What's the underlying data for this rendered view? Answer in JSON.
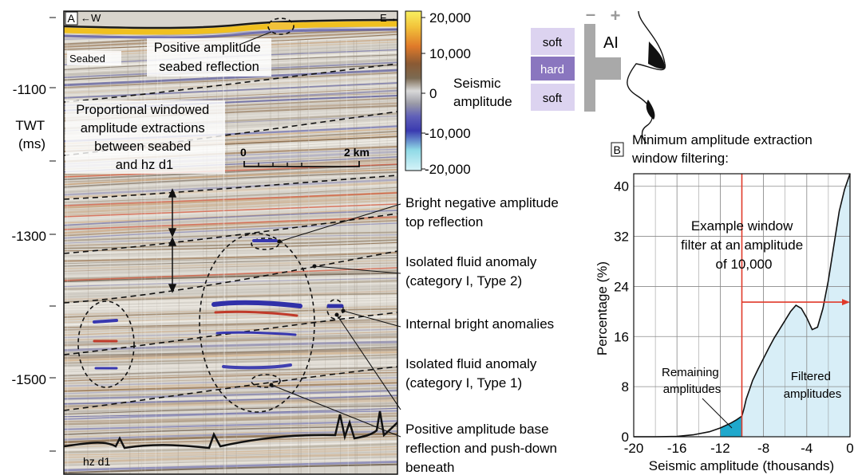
{
  "panel_a": {
    "panel_label": "A",
    "west_label": "W",
    "east_label": "E",
    "y_axis": {
      "title_line1": "TWT",
      "title_line2": "(ms)",
      "ticks": [
        "-1100",
        "-1300",
        "-1500"
      ]
    },
    "seabed_label": "Seabed",
    "horizon_label": "hz d1",
    "scale_bar": {
      "start": "0",
      "end": "2 km"
    },
    "annotations": {
      "seabed_reflection": [
        "Positive amplitude",
        "seabed reflection"
      ],
      "proportional_window": [
        "Proportional windowed",
        "amplitude extractions",
        "between seabed",
        "and hz d1"
      ]
    },
    "callouts": [
      [
        "Bright negative amplitude",
        "top reflection"
      ],
      [
        "Isolated fluid anomaly",
        "(category I, Type 2)"
      ],
      [
        "Internal bright anomalies"
      ],
      [
        "Isolated fluid anomaly",
        "(category I, Type 1)"
      ],
      [
        "Positive amplitude base",
        "reflection and push-down",
        "beneath"
      ]
    ]
  },
  "colorbar": {
    "title_line1": "Seismic",
    "title_line2": "amplitude",
    "ticks": [
      "20,000",
      "10,000",
      "0",
      "-10,000",
      "-20,000"
    ],
    "colors": [
      "#f8f060",
      "#f2c23a",
      "#e07a2a",
      "#8a5a34",
      "#7b6a52",
      "#d9d9d9",
      "#9a9aa6",
      "#6060b8",
      "#3a3ab0",
      "#8fd9e6",
      "#d6f3f8"
    ]
  },
  "ai_diagram": {
    "minus": "–",
    "plus": "+",
    "label": "AI",
    "layers": [
      "soft",
      "hard",
      "soft"
    ],
    "soft_color": "#dcd3f0",
    "hard_color": "#8a76bf"
  },
  "panel_b": {
    "panel_label": "B",
    "title_line1": "Minimum amplitude extraction",
    "title_line2": "window filtering:",
    "example_note": [
      "Example window",
      "filter at an amplitude",
      "of 10,000"
    ],
    "remaining_label": [
      "Remaining",
      "amplitudes"
    ],
    "filtered_label": [
      "Filtered",
      "amplitudes"
    ],
    "filter_color": "#e03a2a",
    "remaining_color": "#1fa8cc",
    "filtered_color": "#d8eef7"
  },
  "chart_data": {
    "type": "area",
    "title": "",
    "xlabel": "Seismic amplitude (thousands)",
    "ylabel": "Percentage (%)",
    "xlim": [
      -20,
      0
    ],
    "ylim": [
      0,
      42
    ],
    "xticks": [
      -20,
      -16,
      -12,
      -8,
      -4,
      0
    ],
    "yticks": [
      0,
      8,
      16,
      24,
      32,
      40
    ],
    "grid": true,
    "filter_threshold": -10,
    "series": [
      {
        "x": [
          -20,
          -18,
          -16,
          -14.5,
          -13,
          -12,
          -11,
          -10.5,
          -10,
          -9.8,
          -9.6,
          -9.3,
          -9,
          -8.5,
          -8,
          -7.5,
          -7,
          -6.5,
          -6,
          -5.5,
          -5,
          -4.5,
          -4,
          -3.5,
          -3,
          -2.5,
          -2,
          -1.5,
          -1,
          -0.5,
          0
        ],
        "y": [
          0,
          0,
          0.05,
          0.3,
          0.8,
          1.4,
          2.2,
          2.7,
          3.3,
          4.5,
          6,
          7.5,
          9,
          10.8,
          12.5,
          14.2,
          15.8,
          17.2,
          18.6,
          20,
          21,
          20.5,
          19,
          17.1,
          17.5,
          20.5,
          25,
          30.5,
          36,
          39.5,
          42
        ]
      }
    ]
  }
}
